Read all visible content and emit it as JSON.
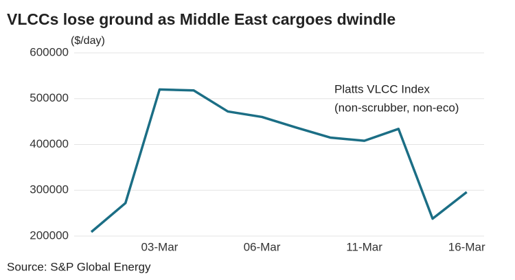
{
  "chart_data": {
    "type": "line",
    "title": "VLCCs lose ground as Middle East cargoes dwindle",
    "y_unit": "($/day)",
    "source": "Source: S&P Global Energy",
    "annotation": [
      "Platts VLCC Index",
      "(non-scrubber, non-eco)"
    ],
    "categories": [
      null,
      null,
      "03-Mar",
      null,
      null,
      "06-Mar",
      null,
      null,
      "11-Mar",
      null,
      null,
      "16-Mar"
    ],
    "series": [
      {
        "name": "Platts VLCC Index",
        "color": "#1b6e85",
        "values": [
          209000,
          272000,
          520000,
          518000,
          472000,
          460000,
          437000,
          415000,
          408000,
          434000,
          238000,
          296000
        ]
      }
    ],
    "ylim": [
      200000,
      600000
    ],
    "yticks": [
      200000,
      300000,
      400000,
      500000,
      600000
    ],
    "grid": true
  }
}
